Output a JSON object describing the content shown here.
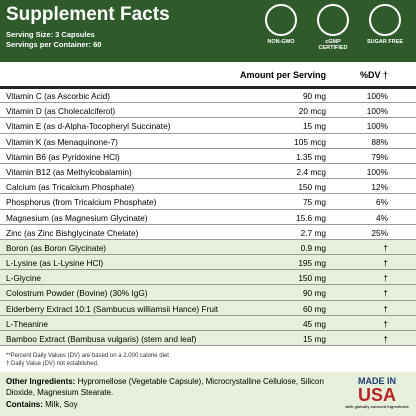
{
  "header": {
    "title": "Supplement Facts",
    "serving_size": "Serving Size: 3 Capsules",
    "servings_per_container": "Servings per Container: 60",
    "badges": [
      "NON-GMO",
      "cGMP CERTIFIED",
      "SUGAR FREE"
    ]
  },
  "table": {
    "columns": [
      "Amount per Serving",
      "%DV †"
    ],
    "rows": [
      [
        "Vitamin C (as Ascorbic Acid)",
        "90 mg",
        "100%"
      ],
      [
        "Vitamin D (as Cholecalciferol)",
        "20 mcg",
        "100%"
      ],
      [
        "Vitamin E (as d-Alpha-Tocopheryl Succinate)",
        "15 mg",
        "100%"
      ],
      [
        "Vitamin K (as Menaquinone-7)",
        "105 mcg",
        "88%"
      ],
      [
        "Vitamin B6 (as Pyridoxine HCl)",
        "1.35 mg",
        "79%"
      ],
      [
        "Vitamin B12 (as Methylcobalamin)",
        "2.4 mcg",
        "100%"
      ],
      [
        "Calcium (as Tricalcium Phosphate)",
        "150 mg",
        "12%"
      ],
      [
        "Phosphorus (from Tricalcium Phosphate)",
        "75 mg",
        "6%"
      ],
      [
        "Magnesium (as Magnesium Glycinate)",
        "15.6 mg",
        "4%"
      ],
      [
        "Zinc (as Zinc Bishglycinate Chelate)",
        "2.7 mg",
        "25%"
      ],
      [
        "Boron (as Boron Glycinate)",
        "0.9 mg",
        "†"
      ],
      [
        "L-Lysine (as L-Lysine HCl)",
        "195 mg",
        "†"
      ],
      [
        "L-Glycine",
        "150 mg",
        "†"
      ],
      [
        "Colostrum Powder (Bovine) (30% IgG)",
        "90 mg",
        "†"
      ],
      [
        "Elderberry Extract 10:1 (Sambucus williamsii Hance) Fruit",
        "60 mg",
        "†"
      ],
      [
        "L-Theanine",
        "45 mg",
        "†"
      ],
      [
        "Bamboo Extract (Bambusa vulgaris) (stem and leaf)",
        "15 mg",
        "†"
      ]
    ]
  },
  "footnotes": [
    "**Percent Daily Values (DV) are based on a 2,000 calorie diet",
    "† Daily Value (DV) not established."
  ],
  "other_ingredients": {
    "label": "Other Ingredients:",
    "text": "Hypromellose (Vegetable Capsule), Microcrystalline Cellulose, Silicon Dioxide, Magnesium Stearate."
  },
  "contains": {
    "label": "Contains:",
    "text": "Milk, Soy"
  },
  "made_in_usa": {
    "line1": "MADE IN",
    "line2": "USA",
    "line3": "with globally sourced ingredients"
  }
}
